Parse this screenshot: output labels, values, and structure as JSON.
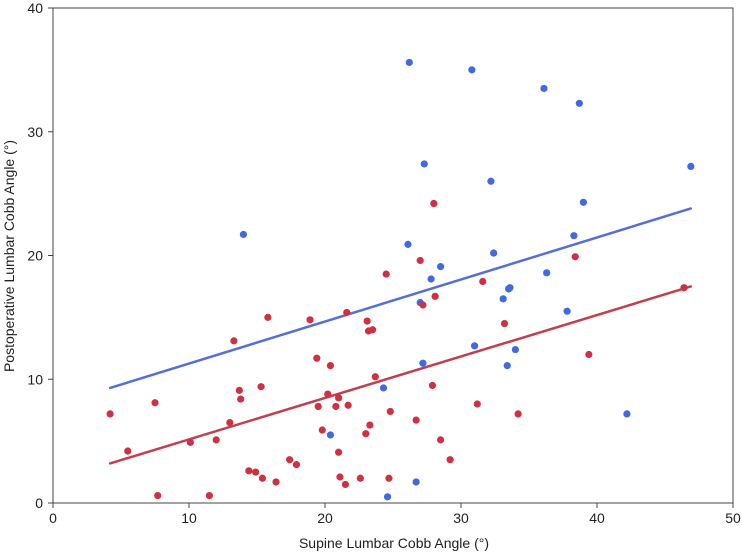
{
  "chart_data": {
    "type": "scatter",
    "title": "",
    "xlabel": "Supine Lumbar Cobb Angle (°)",
    "ylabel": "Postoperative Lumbar Cobb Angle (°)",
    "xlim": [
      0,
      50
    ],
    "ylim": [
      0,
      40
    ],
    "xticks": [
      0,
      10,
      20,
      30,
      40,
      50
    ],
    "yticks": [
      0,
      10,
      20,
      30,
      40
    ],
    "grid": false,
    "colors": {
      "blue": "#4169E1",
      "red": "#D03040",
      "blue_line": "#5470D8",
      "red_line": "#C04050"
    },
    "series": [
      {
        "color": "blue",
        "points": [
          [
            14.0,
            21.7
          ],
          [
            20.4,
            5.5
          ],
          [
            24.3,
            9.3
          ],
          [
            24.6,
            0.5
          ],
          [
            26.1,
            20.9
          ],
          [
            26.2,
            35.6
          ],
          [
            26.7,
            1.7
          ],
          [
            27.0,
            16.2
          ],
          [
            27.2,
            11.3
          ],
          [
            27.3,
            27.4
          ],
          [
            27.8,
            18.1
          ],
          [
            28.5,
            19.1
          ],
          [
            30.8,
            35.0
          ],
          [
            31.0,
            12.7
          ],
          [
            32.2,
            26.0
          ],
          [
            32.4,
            20.2
          ],
          [
            33.1,
            16.5
          ],
          [
            33.4,
            11.1
          ],
          [
            33.5,
            17.3
          ],
          [
            33.6,
            17.4
          ],
          [
            34.0,
            12.4
          ],
          [
            36.1,
            33.5
          ],
          [
            36.3,
            18.6
          ],
          [
            37.8,
            15.5
          ],
          [
            38.3,
            21.6
          ],
          [
            38.7,
            32.3
          ],
          [
            39.0,
            24.3
          ],
          [
            42.2,
            7.2
          ],
          [
            46.9,
            27.2
          ]
        ],
        "fit": [
          [
            4.2,
            9.3
          ],
          [
            46.9,
            23.8
          ]
        ]
      },
      {
        "color": "red",
        "points": [
          [
            4.2,
            7.2
          ],
          [
            5.5,
            4.2
          ],
          [
            7.5,
            8.1
          ],
          [
            7.7,
            0.6
          ],
          [
            10.1,
            4.9
          ],
          [
            11.5,
            0.6
          ],
          [
            12.0,
            5.1
          ],
          [
            13.0,
            6.5
          ],
          [
            13.3,
            13.1
          ],
          [
            13.7,
            9.1
          ],
          [
            13.8,
            8.4
          ],
          [
            14.4,
            2.6
          ],
          [
            14.9,
            2.5
          ],
          [
            15.3,
            9.4
          ],
          [
            15.4,
            2.0
          ],
          [
            15.8,
            15.0
          ],
          [
            16.4,
            1.7
          ],
          [
            17.4,
            3.5
          ],
          [
            17.9,
            3.1
          ],
          [
            18.9,
            14.8
          ],
          [
            19.4,
            11.7
          ],
          [
            19.5,
            7.8
          ],
          [
            19.8,
            5.9
          ],
          [
            20.2,
            8.8
          ],
          [
            20.4,
            11.1
          ],
          [
            20.8,
            7.8
          ],
          [
            21.0,
            8.5
          ],
          [
            21.0,
            4.1
          ],
          [
            21.1,
            2.1
          ],
          [
            21.5,
            1.5
          ],
          [
            21.6,
            15.4
          ],
          [
            21.7,
            7.9
          ],
          [
            22.6,
            2.0
          ],
          [
            23.0,
            5.6
          ],
          [
            23.1,
            14.7
          ],
          [
            23.2,
            13.9
          ],
          [
            23.3,
            6.3
          ],
          [
            23.5,
            14.0
          ],
          [
            23.7,
            10.2
          ],
          [
            24.5,
            18.5
          ],
          [
            24.7,
            2.0
          ],
          [
            24.8,
            7.4
          ],
          [
            26.7,
            6.7
          ],
          [
            27.0,
            19.6
          ],
          [
            27.2,
            16.0
          ],
          [
            27.9,
            9.5
          ],
          [
            28.0,
            24.2
          ],
          [
            28.1,
            16.7
          ],
          [
            28.5,
            5.1
          ],
          [
            29.2,
            3.5
          ],
          [
            31.2,
            8.0
          ],
          [
            31.6,
            17.9
          ],
          [
            33.2,
            14.5
          ],
          [
            34.2,
            7.2
          ],
          [
            38.4,
            19.9
          ],
          [
            39.4,
            12.0
          ],
          [
            46.4,
            17.4
          ]
        ],
        "fit": [
          [
            4.2,
            3.2
          ],
          [
            46.9,
            17.5
          ]
        ]
      }
    ]
  }
}
